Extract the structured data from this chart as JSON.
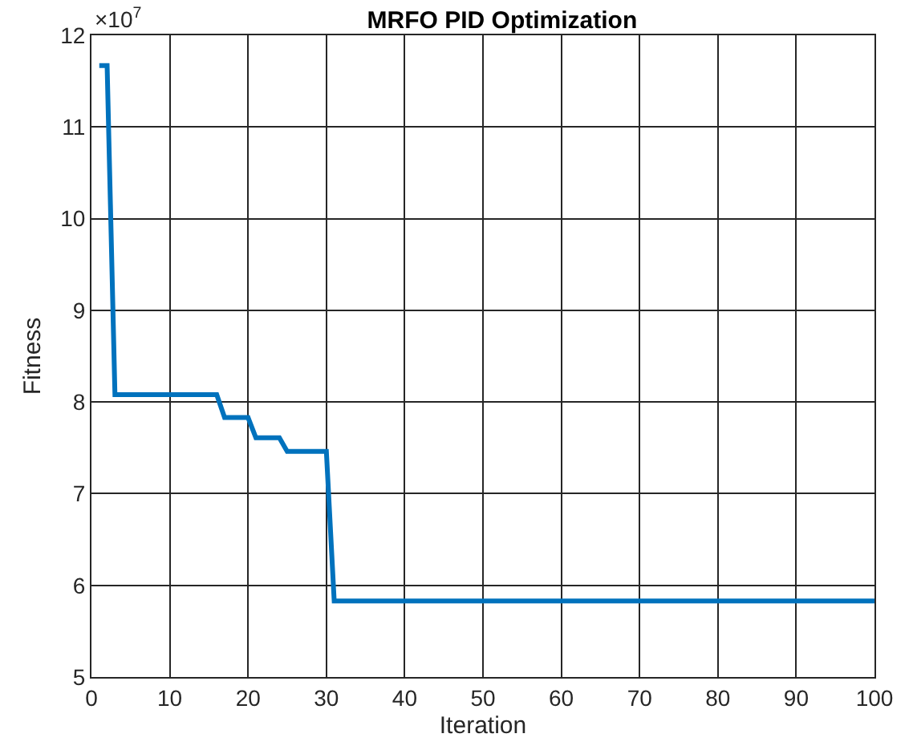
{
  "chart_data": {
    "type": "line",
    "title": "MRFO PID Optimization",
    "xlabel": "Iteration",
    "ylabel": "Fitness",
    "annotations": [
      "×10$^{7}$"
    ],
    "x": [
      1,
      2,
      3,
      16,
      17,
      20,
      21,
      24,
      25,
      30,
      31,
      100
    ],
    "series": [
      {
        "color": "#0072bd",
        "values": [
          11.67,
          11.67,
          8.08,
          8.08,
          7.83,
          7.83,
          7.61,
          7.61,
          7.46,
          7.46,
          5.83,
          5.83
        ]
      }
    ],
    "xlim": [
      0,
      100
    ],
    "xticks": [
      0,
      10,
      20,
      30,
      40,
      50,
      60,
      70,
      80,
      90,
      100
    ],
    "ylim": [
      5,
      12
    ],
    "yticks": [
      5,
      6,
      7,
      8,
      9,
      10,
      11,
      12
    ],
    "grid": true,
    "marker": "none",
    "line_style": "solid"
  }
}
